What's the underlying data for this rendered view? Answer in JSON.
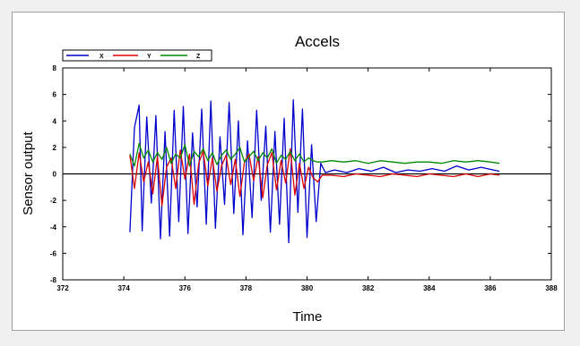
{
  "chart_data": {
    "type": "line",
    "title": "Accels",
    "xlabel": "Time",
    "ylabel": "Sensor output",
    "xlim": [
      372,
      388
    ],
    "ylim": [
      -8,
      8
    ],
    "xticks": [
      372,
      374,
      376,
      378,
      380,
      382,
      384,
      386,
      388
    ],
    "yticks": [
      8,
      6,
      4,
      2,
      0,
      -2,
      -4,
      -6,
      -8
    ],
    "grid": false,
    "legend_position": "top-left",
    "zero_line": true,
    "series": [
      {
        "name": "X",
        "color": "#0000cc",
        "x": [
          374.2,
          374.35,
          374.5,
          374.6,
          374.75,
          374.9,
          375.05,
          375.2,
          375.35,
          375.5,
          375.65,
          375.8,
          375.95,
          376.1,
          376.25,
          376.4,
          376.55,
          376.7,
          376.85,
          377.0,
          377.15,
          377.3,
          377.45,
          377.6,
          377.75,
          377.9,
          378.05,
          378.2,
          378.35,
          378.5,
          378.65,
          378.8,
          378.95,
          379.1,
          379.25,
          379.4,
          379.55,
          379.7,
          379.85,
          380.0,
          380.15,
          380.3,
          380.45,
          380.6,
          380.9,
          381.3,
          381.7,
          382.1,
          382.5,
          382.9,
          383.3,
          383.7,
          384.1,
          384.5,
          384.9,
          385.3,
          385.7,
          386.1,
          386.3
        ],
        "values": [
          -4.4,
          3.5,
          5.2,
          -4.3,
          4.3,
          -2.2,
          4.4,
          -4.9,
          3.2,
          -4.7,
          4.8,
          -3.6,
          5.1,
          -4.5,
          3.1,
          -2.5,
          4.9,
          -3.8,
          5.5,
          -4.1,
          2.8,
          -2.3,
          5.4,
          -3.0,
          4.0,
          -4.6,
          2.5,
          -3.3,
          4.8,
          -2.0,
          3.6,
          -4.4,
          3.2,
          -3.8,
          4.2,
          -5.2,
          5.6,
          -2.9,
          4.9,
          -4.8,
          2.2,
          -3.6,
          0.8,
          0.1,
          0.3,
          0.1,
          0.4,
          0.2,
          0.5,
          0.1,
          0.3,
          0.2,
          0.4,
          0.2,
          0.6,
          0.3,
          0.5,
          0.3,
          0.2
        ]
      },
      {
        "name": "Y",
        "color": "#dd0000",
        "x": [
          374.2,
          374.35,
          374.5,
          374.65,
          374.8,
          374.95,
          375.1,
          375.25,
          375.4,
          375.55,
          375.7,
          375.85,
          376.0,
          376.15,
          376.3,
          376.45,
          376.6,
          376.75,
          376.9,
          377.05,
          377.2,
          377.35,
          377.5,
          377.65,
          377.8,
          377.95,
          378.1,
          378.25,
          378.4,
          378.55,
          378.7,
          378.85,
          379.0,
          379.15,
          379.3,
          379.45,
          379.6,
          379.75,
          379.9,
          380.05,
          380.2,
          380.35,
          380.5,
          380.8,
          381.2,
          381.6,
          382.0,
          382.4,
          382.8,
          383.2,
          383.6,
          384.0,
          384.4,
          384.8,
          385.2,
          385.6,
          386.0,
          386.3
        ],
        "values": [
          1.4,
          -1.1,
          1.6,
          -0.6,
          0.9,
          -1.5,
          1.3,
          -2.4,
          0.5,
          1.2,
          -1.1,
          1.8,
          -0.4,
          1.5,
          -2.3,
          0.8,
          1.7,
          -0.9,
          1.2,
          -1.3,
          0.6,
          1.4,
          -0.8,
          1.1,
          -1.7,
          0.9,
          1.5,
          -0.5,
          1.3,
          -1.8,
          0.7,
          1.6,
          -1.2,
          1.0,
          -0.7,
          1.9,
          -1.6,
          0.8,
          -1.1,
          0.5,
          -0.3,
          -0.6,
          -0.1,
          -0.1,
          -0.2,
          0.0,
          -0.1,
          -0.2,
          0.0,
          -0.1,
          -0.2,
          0.0,
          -0.1,
          -0.2,
          0.0,
          -0.2,
          0.0,
          -0.1
        ]
      },
      {
        "name": "Z",
        "color": "#008800",
        "x": [
          374.2,
          374.35,
          374.5,
          374.65,
          374.8,
          374.95,
          375.1,
          375.25,
          375.4,
          375.55,
          375.7,
          375.85,
          376.0,
          376.15,
          376.3,
          376.45,
          376.6,
          376.75,
          376.9,
          377.05,
          377.2,
          377.35,
          377.5,
          377.65,
          377.8,
          377.95,
          378.1,
          378.25,
          378.4,
          378.55,
          378.7,
          378.85,
          379.0,
          379.15,
          379.3,
          379.45,
          379.6,
          379.75,
          379.9,
          380.05,
          380.2,
          380.35,
          380.5,
          380.8,
          381.2,
          381.6,
          382.0,
          382.4,
          382.8,
          383.2,
          383.6,
          384.0,
          384.4,
          384.8,
          385.2,
          385.6,
          386.0,
          386.3
        ],
        "values": [
          1.5,
          0.6,
          2.3,
          1.2,
          1.8,
          0.9,
          1.6,
          1.1,
          2.0,
          0.8,
          1.5,
          1.2,
          2.2,
          0.6,
          1.7,
          1.3,
          1.9,
          1.0,
          1.6,
          0.7,
          1.4,
          1.8,
          1.1,
          1.5,
          2.0,
          0.9,
          1.3,
          1.7,
          1.0,
          1.6,
          1.2,
          1.9,
          0.8,
          1.4,
          1.1,
          1.7,
          1.0,
          1.5,
          0.9,
          1.2,
          1.0,
          0.9,
          0.9,
          1.0,
          0.9,
          1.0,
          0.8,
          1.0,
          0.9,
          0.8,
          0.9,
          0.9,
          0.8,
          1.0,
          0.9,
          1.0,
          0.9,
          0.8
        ]
      }
    ]
  }
}
